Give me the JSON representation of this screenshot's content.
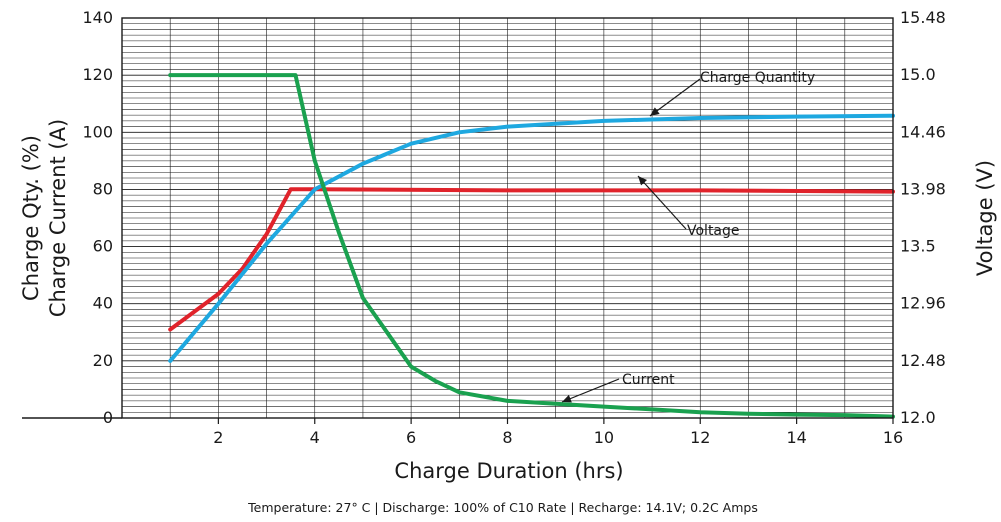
{
  "chart_data": {
    "type": "line",
    "xlabel": "Charge Duration (hrs)",
    "ylabel_left": [
      "Charge Qty. (%)",
      "Charge Current (A)"
    ],
    "ylabel_right": "Voltage (V)",
    "caption": "Temperature: 27° C  |  Discharge: 100% of C10 Rate  |  Recharge: 14.1V; 0.2C Amps",
    "xlim": [
      0,
      16
    ],
    "ylim_left": [
      0,
      140
    ],
    "ylim_right": [
      12.0,
      15.48
    ],
    "x_ticks": [
      "2",
      "4",
      "6",
      "8",
      "10",
      "12",
      "14",
      "16"
    ],
    "y_ticks_left": [
      "0",
      "20",
      "40",
      "60",
      "80",
      "100",
      "120",
      "140"
    ],
    "y_ticks_right": [
      "12.0",
      "12.48",
      "12.96",
      "13.5",
      "13.98",
      "14.46",
      "15.0",
      "15.48"
    ],
    "grid": true,
    "series": [
      {
        "name": "Current",
        "color": "#1aa14f",
        "axis": "left",
        "x": [
          1,
          1.5,
          2,
          2.5,
          3,
          3.5,
          3.6,
          4,
          4.5,
          5,
          5.5,
          6,
          6.5,
          7,
          8,
          9,
          10,
          11,
          12,
          13,
          14,
          15,
          16
        ],
        "y": [
          120,
          120,
          120,
          120,
          120,
          120,
          120,
          90,
          65,
          42,
          30,
          18,
          13,
          9,
          6,
          5,
          4,
          3,
          2,
          1.5,
          1.2,
          1,
          0.5
        ]
      },
      {
        "name": "Charge Quantity",
        "color": "#1ea8e0",
        "axis": "left",
        "x": [
          1,
          2,
          3,
          4,
          5,
          6,
          7,
          8,
          10,
          12,
          14,
          16
        ],
        "y": [
          20,
          40,
          61,
          80,
          89,
          96,
          100,
          102,
          104,
          105,
          105.5,
          105.8
        ]
      },
      {
        "name": "Voltage",
        "color": "#e0232b",
        "axis": "right",
        "x": [
          1,
          2,
          2.5,
          3,
          3.5,
          4,
          8,
          12,
          16
        ],
        "y": [
          12.77,
          13.08,
          13.3,
          13.6,
          13.99,
          13.99,
          13.98,
          13.98,
          13.97
        ]
      }
    ],
    "annotations": [
      {
        "text": "Charge Quantity",
        "series": "Charge Quantity"
      },
      {
        "text": "Voltage",
        "series": "Voltage"
      },
      {
        "text": "Current",
        "series": "Current"
      }
    ]
  }
}
